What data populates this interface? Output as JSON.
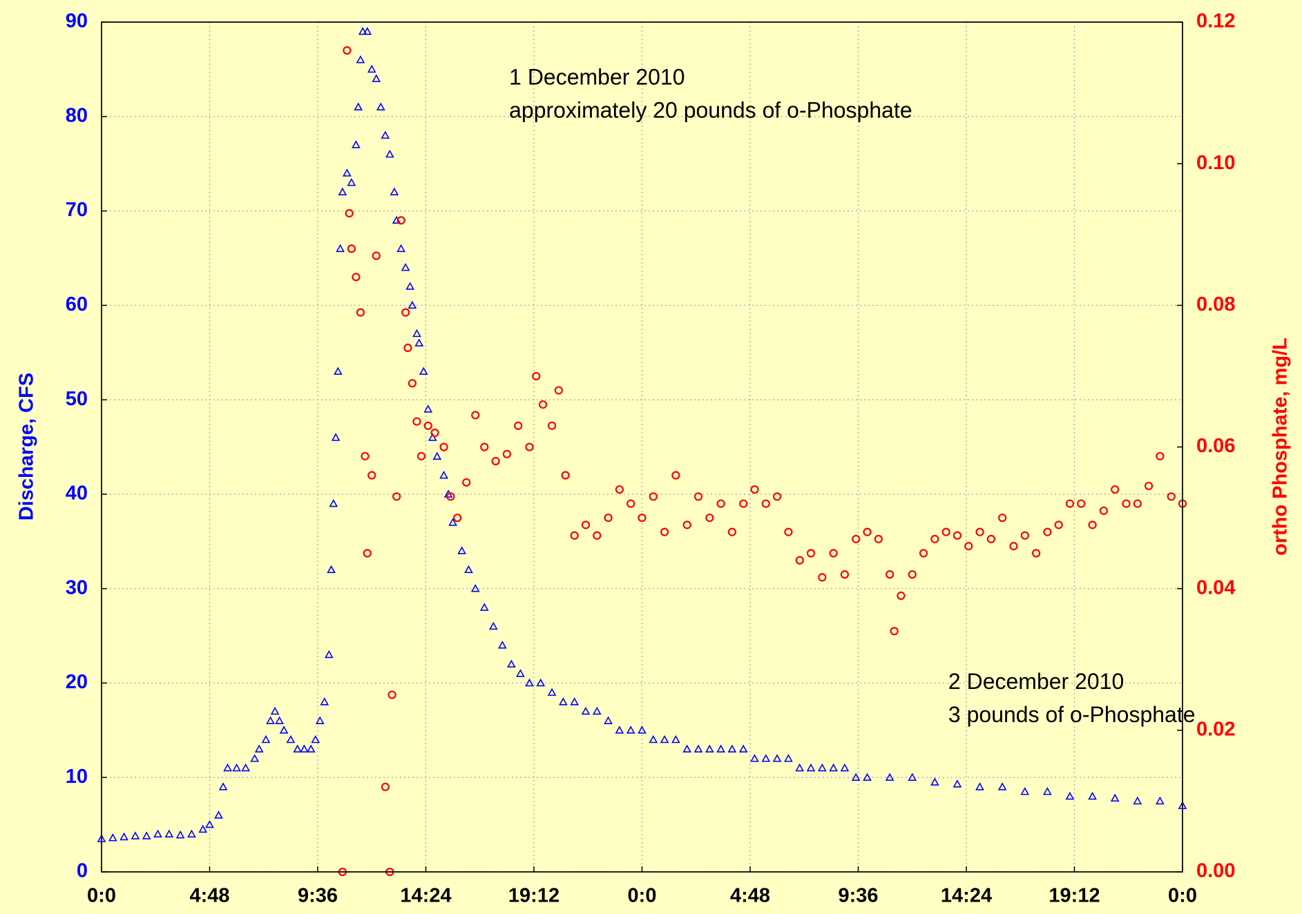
{
  "chart_data": {
    "type": "scatter",
    "ylabel": "Discharge, CFS",
    "y2label": "ortho Phosphate, mg/L",
    "annotations": [
      {
        "text": "1 December 2010",
        "x": 18.1,
        "y": 84
      },
      {
        "text": "approximately 20 pounds of o-Phosphate",
        "x": 18.1,
        "y": 80.5
      },
      {
        "text": "2 December 2010",
        "x": 37.6,
        "y": 20
      },
      {
        "text": "3 pounds of o-Phosphate",
        "x": 37.6,
        "y": 16.5
      }
    ],
    "xlim": [
      0,
      48
    ],
    "xticks": [
      {
        "value": 0,
        "label": "0:0"
      },
      {
        "value": 4.8,
        "label": "4:48"
      },
      {
        "value": 9.6,
        "label": "9:36"
      },
      {
        "value": 14.4,
        "label": "14:24"
      },
      {
        "value": 19.2,
        "label": "19:12"
      },
      {
        "value": 24,
        "label": "0:0"
      },
      {
        "value": 28.8,
        "label": "4:48"
      },
      {
        "value": 33.6,
        "label": "9:36"
      },
      {
        "value": 38.4,
        "label": "14:24"
      },
      {
        "value": 43.2,
        "label": "19:12"
      },
      {
        "value": 48,
        "label": "0:0"
      }
    ],
    "ylim": [
      0,
      90
    ],
    "yticks": [
      0,
      10,
      20,
      30,
      40,
      50,
      60,
      70,
      80,
      90
    ],
    "y2lim": [
      0,
      0.12
    ],
    "y2ticks": [
      {
        "value": 0,
        "label": "0.00"
      },
      0.02,
      0.04,
      0.06,
      0.08,
      {
        "value": 0.1,
        "label": "0.10"
      },
      0.12
    ],
    "grid": true,
    "series": [
      {
        "color": "#0000ff",
        "marker": "triangle",
        "x": [
          0,
          0.5,
          1,
          1.5,
          2,
          2.5,
          3,
          3.5,
          4,
          4.5,
          4.8,
          5.2,
          5.4,
          5.6,
          6,
          6.4,
          6.8,
          7,
          7.3,
          7.5,
          7.7,
          7.9,
          8.1,
          8.4,
          8.7,
          9,
          9.3,
          9.5,
          9.7,
          9.9,
          10.1,
          10.2,
          10.3,
          10.4,
          10.5,
          10.6,
          10.7,
          10.9,
          11.1,
          11.3,
          11.4,
          11.5,
          11.6,
          11.8,
          12,
          12.2,
          12.4,
          12.6,
          12.8,
          13,
          13.1,
          13.3,
          13.5,
          13.7,
          13.8,
          14,
          14.1,
          14.3,
          14.5,
          14.7,
          14.9,
          15.2,
          15.4,
          15.6,
          16,
          16.3,
          16.6,
          17,
          17.4,
          17.8,
          18.2,
          18.6,
          19,
          19.5,
          20,
          20.5,
          21,
          21.5,
          22,
          22.5,
          23,
          23.5,
          24,
          24.5,
          25,
          25.5,
          26,
          26.5,
          27,
          27.5,
          28,
          28.5,
          29,
          29.5,
          30,
          30.5,
          31,
          31.5,
          32,
          32.5,
          33,
          33.5,
          34,
          35,
          36,
          37,
          38,
          39,
          40,
          41,
          42,
          43,
          44,
          45,
          46,
          47,
          48
        ],
        "values": [
          3.5,
          3.6,
          3.7,
          3.8,
          3.8,
          4,
          4,
          3.9,
          4,
          4.5,
          5,
          6,
          9,
          11,
          11,
          11,
          12,
          13,
          14,
          16,
          17,
          16,
          15,
          14,
          13,
          13,
          13,
          14,
          16,
          18,
          23,
          32,
          39,
          46,
          53,
          66,
          72,
          74,
          73,
          77,
          81,
          86,
          89,
          89,
          85,
          84,
          81,
          78,
          76,
          72,
          69,
          66,
          64,
          62,
          60,
          57,
          56,
          53,
          49,
          46,
          44,
          42,
          40,
          37,
          34,
          32,
          30,
          28,
          26,
          24,
          22,
          21,
          20,
          20,
          19,
          18,
          18,
          17,
          17,
          16,
          15,
          15,
          15,
          14,
          14,
          14,
          13,
          13,
          13,
          13,
          13,
          13,
          12,
          12,
          12,
          12,
          11,
          11,
          11,
          11,
          11,
          10,
          10,
          10,
          10,
          9.5,
          9.3,
          9,
          9,
          8.5,
          8.5,
          8,
          8,
          7.8,
          7.5,
          7.5,
          7
        ]
      },
      {
        "color": "#ff0000",
        "marker": "circle",
        "axis": "y2",
        "x": [
          10.7,
          10.9,
          11,
          11.1,
          11.3,
          11.5,
          11.7,
          11.8,
          12,
          12.2,
          12.6,
          12.8,
          12.9,
          13.1,
          13.3,
          13.5,
          13.6,
          13.8,
          14,
          14.2,
          14.5,
          14.8,
          15.2,
          15.5,
          15.8,
          16.2,
          16.6,
          17,
          17.5,
          18,
          18.5,
          19,
          19.3,
          19.6,
          20,
          20.3,
          20.6,
          21,
          21.5,
          22,
          22.5,
          23,
          23.5,
          24,
          24.5,
          25,
          25.5,
          26,
          26.5,
          27,
          27.5,
          28,
          28.5,
          29,
          29.5,
          30,
          30.5,
          31,
          31.5,
          32,
          32.5,
          33,
          33.5,
          34,
          34.5,
          35,
          35.2,
          35.5,
          36,
          36.5,
          37,
          37.5,
          38,
          38.5,
          39,
          39.5,
          40,
          40.5,
          41,
          41.5,
          42,
          42.5,
          43,
          43.5,
          44,
          44.5,
          45,
          45.5,
          46,
          46.5,
          47,
          47.5,
          48
        ],
        "values": [
          0,
          0.116,
          0.093,
          0.088,
          0.084,
          0.079,
          0.0587,
          0.045,
          0.056,
          0.087,
          0.012,
          0,
          0.025,
          0.053,
          0.092,
          0.079,
          0.074,
          0.069,
          0.0636,
          0.0587,
          0.063,
          0.062,
          0.06,
          0.053,
          0.05,
          0.055,
          0.0645,
          0.06,
          0.058,
          0.059,
          0.063,
          0.06,
          0.07,
          0.066,
          0.063,
          0.068,
          0.056,
          0.0475,
          0.049,
          0.0475,
          0.05,
          0.054,
          0.052,
          0.05,
          0.053,
          0.048,
          0.056,
          0.049,
          0.053,
          0.05,
          0.052,
          0.048,
          0.052,
          0.054,
          0.052,
          0.053,
          0.048,
          0.044,
          0.045,
          0.0416,
          0.045,
          0.042,
          0.047,
          0.048,
          0.047,
          0.042,
          0.034,
          0.039,
          0.042,
          0.045,
          0.047,
          0.048,
          0.0475,
          0.046,
          0.048,
          0.047,
          0.05,
          0.046,
          0.0475,
          0.045,
          0.048,
          0.049,
          0.052,
          0.052,
          0.049,
          0.051,
          0.054,
          0.052,
          0.052,
          0.0545,
          0.0587,
          0.053,
          0.052
        ]
      }
    ]
  }
}
